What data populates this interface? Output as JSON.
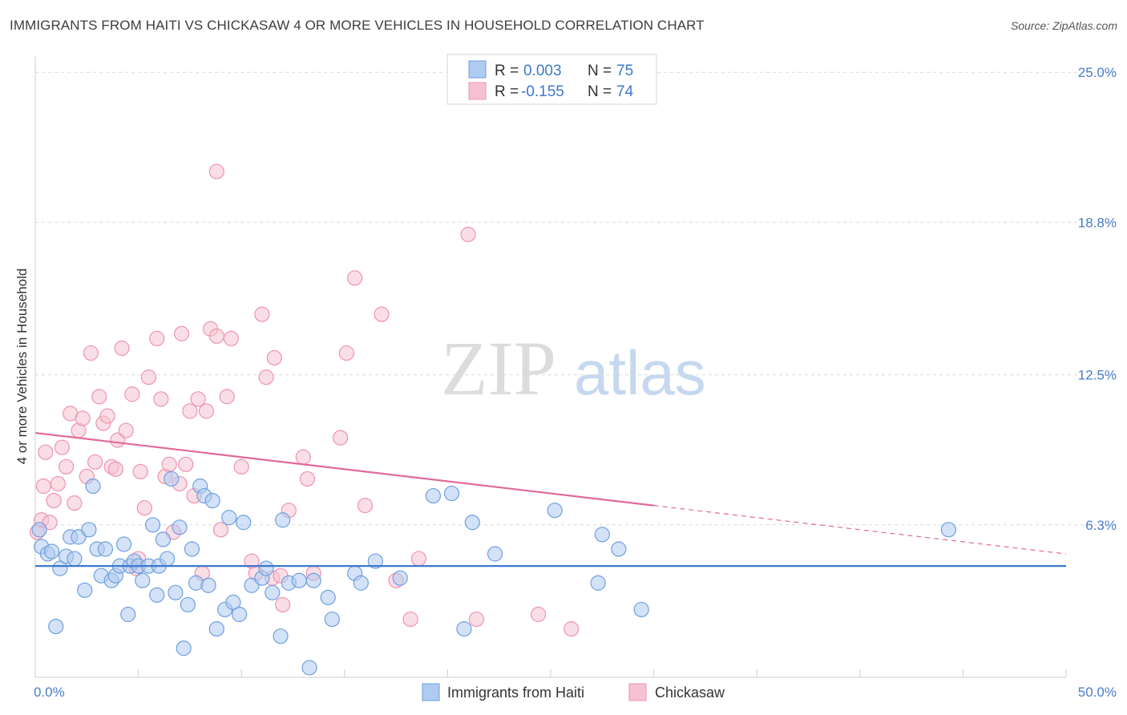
{
  "title": "IMMIGRANTS FROM HAITI VS CHICKASAW 4 OR MORE VEHICLES IN HOUSEHOLD CORRELATION CHART",
  "source": "Source: ZipAtlas.com",
  "watermark": {
    "zip": "ZIP",
    "atlas": "atlas"
  },
  "colors": {
    "haiti_fill": "#aecbf0",
    "haiti_stroke": "#6f9fe0",
    "haiti_line": "#3d78cc",
    "chick_fill": "#f6c2d2",
    "chick_stroke": "#ee93b0",
    "chick_line": "#e0699a",
    "tick": "#4a7cc9",
    "grid": "#d9d9d9"
  },
  "legend": {
    "rows": [
      {
        "r_label": "R = ",
        "r_value": "0.003",
        "n_label": "N = ",
        "n_value": "75"
      },
      {
        "r_label": "R = ",
        "r_value": "-0.155",
        "n_label": "N = ",
        "n_value": "74"
      }
    ]
  },
  "chart_data": {
    "type": "scatter",
    "title": "IMMIGRANTS FROM HAITI VS CHICKASAW 4 OR MORE VEHICLES IN HOUSEHOLD CORRELATION CHART",
    "xlabel": "",
    "ylabel": "4 or more Vehicles in Household",
    "xlim": [
      0,
      50
    ],
    "ylim": [
      0,
      26
    ],
    "x_tick_labels": [
      "0.0%",
      "50.0%"
    ],
    "y_ticks": [
      6.3,
      12.5,
      18.8,
      25.0
    ],
    "y_tick_labels": [
      "6.3%",
      "12.5%",
      "18.8%",
      "25.0%"
    ],
    "grid": true,
    "legend_position": "top-center",
    "series": [
      {
        "name": "Immigrants from Haiti",
        "r": 0.003,
        "n": 75,
        "trend": {
          "x0": 0,
          "y0": 4.6,
          "x1": 50,
          "y1": 4.6,
          "dashed_from": null
        },
        "points": [
          [
            0.2,
            6.1
          ],
          [
            0.3,
            5.4
          ],
          [
            0.6,
            5.1
          ],
          [
            0.8,
            5.2
          ],
          [
            1.0,
            2.1
          ],
          [
            1.2,
            4.5
          ],
          [
            1.5,
            5.0
          ],
          [
            1.7,
            5.8
          ],
          [
            1.9,
            4.9
          ],
          [
            2.1,
            5.8
          ],
          [
            2.4,
            3.6
          ],
          [
            2.6,
            6.1
          ],
          [
            2.8,
            7.9
          ],
          [
            3.0,
            5.3
          ],
          [
            3.2,
            4.2
          ],
          [
            3.4,
            5.3
          ],
          [
            3.7,
            4.0
          ],
          [
            3.9,
            4.2
          ],
          [
            4.1,
            4.6
          ],
          [
            4.3,
            5.5
          ],
          [
            4.5,
            2.6
          ],
          [
            4.6,
            4.6
          ],
          [
            4.8,
            4.8
          ],
          [
            5.0,
            4.6
          ],
          [
            5.2,
            4.0
          ],
          [
            5.5,
            4.6
          ],
          [
            5.7,
            6.3
          ],
          [
            5.9,
            3.4
          ],
          [
            6.0,
            4.6
          ],
          [
            6.2,
            5.7
          ],
          [
            6.4,
            4.9
          ],
          [
            6.6,
            8.2
          ],
          [
            6.8,
            3.5
          ],
          [
            7.0,
            6.2
          ],
          [
            7.2,
            1.2
          ],
          [
            7.4,
            3.0
          ],
          [
            7.6,
            5.3
          ],
          [
            7.8,
            3.9
          ],
          [
            8.0,
            7.9
          ],
          [
            8.2,
            7.5
          ],
          [
            8.4,
            3.8
          ],
          [
            8.6,
            7.3
          ],
          [
            8.8,
            2.0
          ],
          [
            9.2,
            2.8
          ],
          [
            9.4,
            6.6
          ],
          [
            9.6,
            3.1
          ],
          [
            9.9,
            2.6
          ],
          [
            10.1,
            6.4
          ],
          [
            10.5,
            3.8
          ],
          [
            11.0,
            4.1
          ],
          [
            11.2,
            4.5
          ],
          [
            11.5,
            3.5
          ],
          [
            11.9,
            1.7
          ],
          [
            12.0,
            6.5
          ],
          [
            12.3,
            3.9
          ],
          [
            12.8,
            4.0
          ],
          [
            13.3,
            0.4
          ],
          [
            13.5,
            4.0
          ],
          [
            14.2,
            3.3
          ],
          [
            14.4,
            2.4
          ],
          [
            15.5,
            4.3
          ],
          [
            15.8,
            3.9
          ],
          [
            16.5,
            4.8
          ],
          [
            17.7,
            4.1
          ],
          [
            19.3,
            7.5
          ],
          [
            20.2,
            7.6
          ],
          [
            20.8,
            2.0
          ],
          [
            21.2,
            6.4
          ],
          [
            22.3,
            5.1
          ],
          [
            25.2,
            6.9
          ],
          [
            27.5,
            5.9
          ],
          [
            27.3,
            3.9
          ],
          [
            28.3,
            5.3
          ],
          [
            29.4,
            2.8
          ],
          [
            44.3,
            6.1
          ]
        ]
      },
      {
        "name": "Chickasaw",
        "r": -0.155,
        "n": 74,
        "trend": {
          "x0": 0,
          "y0": 10.1,
          "x1": 50,
          "y1": 5.1,
          "dashed_from": 30
        },
        "points": [
          [
            0.1,
            6.0
          ],
          [
            0.3,
            6.5
          ],
          [
            0.4,
            7.9
          ],
          [
            0.5,
            9.3
          ],
          [
            0.7,
            6.4
          ],
          [
            0.9,
            7.3
          ],
          [
            1.1,
            8.0
          ],
          [
            1.3,
            9.5
          ],
          [
            1.5,
            8.7
          ],
          [
            1.7,
            10.9
          ],
          [
            1.9,
            7.2
          ],
          [
            2.1,
            10.2
          ],
          [
            2.3,
            10.7
          ],
          [
            2.5,
            8.3
          ],
          [
            2.7,
            13.4
          ],
          [
            2.9,
            8.9
          ],
          [
            3.1,
            11.6
          ],
          [
            3.3,
            10.5
          ],
          [
            3.5,
            10.8
          ],
          [
            3.7,
            8.7
          ],
          [
            3.9,
            8.6
          ],
          [
            4.0,
            9.8
          ],
          [
            4.2,
            13.6
          ],
          [
            4.4,
            10.2
          ],
          [
            4.7,
            11.7
          ],
          [
            4.9,
            4.5
          ],
          [
            5.1,
            8.5
          ],
          [
            5.3,
            7.0
          ],
          [
            5.5,
            12.4
          ],
          [
            5.9,
            14.0
          ],
          [
            6.1,
            11.5
          ],
          [
            6.3,
            8.3
          ],
          [
            6.5,
            8.8
          ],
          [
            6.7,
            6.0
          ],
          [
            7.0,
            8.0
          ],
          [
            7.1,
            14.2
          ],
          [
            7.3,
            8.8
          ],
          [
            7.5,
            11.0
          ],
          [
            7.7,
            7.5
          ],
          [
            7.9,
            11.5
          ],
          [
            8.1,
            4.3
          ],
          [
            8.3,
            11.0
          ],
          [
            8.5,
            14.4
          ],
          [
            8.8,
            14.1
          ],
          [
            9.0,
            6.1
          ],
          [
            9.3,
            11.6
          ],
          [
            9.5,
            14.0
          ],
          [
            10.0,
            8.7
          ],
          [
            10.5,
            4.8
          ],
          [
            10.7,
            4.3
          ],
          [
            11.0,
            15.0
          ],
          [
            11.2,
            12.4
          ],
          [
            11.5,
            4.1
          ],
          [
            11.6,
            13.2
          ],
          [
            11.9,
            4.2
          ],
          [
            12.0,
            3.0
          ],
          [
            12.3,
            6.9
          ],
          [
            13.0,
            9.1
          ],
          [
            13.2,
            8.2
          ],
          [
            13.5,
            4.3
          ],
          [
            14.8,
            9.9
          ],
          [
            15.1,
            13.4
          ],
          [
            15.5,
            16.5
          ],
          [
            16.0,
            7.1
          ],
          [
            8.8,
            20.9
          ],
          [
            16.8,
            15.0
          ],
          [
            17.5,
            4.0
          ],
          [
            18.2,
            2.4
          ],
          [
            18.6,
            4.9
          ],
          [
            21.0,
            18.3
          ],
          [
            21.4,
            2.4
          ],
          [
            24.4,
            2.6
          ],
          [
            26.0,
            2.0
          ],
          [
            5.0,
            4.9
          ]
        ]
      }
    ]
  }
}
